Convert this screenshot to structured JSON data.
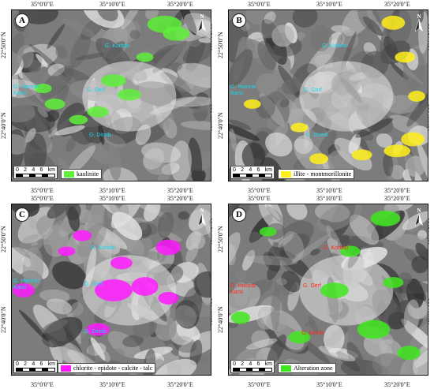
{
  "coords": {
    "top": [
      "35°0'0\"E",
      "35°10'0\"E",
      "35°20'0\"E"
    ],
    "bottom": [
      "35°0'0\"E",
      "35°10'0\"E",
      "35°20'0\"E"
    ],
    "left": [
      "22°50'0\"N",
      "22°40'0\"N"
    ],
    "right": [
      "22°50'0\"N",
      "22°40'0\"N"
    ]
  },
  "scale": {
    "ticks": [
      "0",
      "2",
      "4",
      "6"
    ],
    "unit": "km"
  },
  "north_label": "N",
  "places": {
    "korbiai": "G. Korbiai",
    "gerf": "G. Gerf",
    "hamrat": "G. Hamrat\nKarsi",
    "direib": "G. Direib"
  },
  "panels": [
    {
      "letter": "A",
      "legend": "kaolinite",
      "color": "#5ef03a",
      "label_color": "#19d6f0"
    },
    {
      "letter": "B",
      "legend": "illite - montmorillonite",
      "color": "#ffee1a",
      "label_color": "#19d6f0"
    },
    {
      "letter": "C",
      "legend": "chlorite - epidote - calcite - talc",
      "color": "#ff1aff",
      "label_color": "#19d6f0"
    },
    {
      "letter": "D",
      "legend": "Alteration zone",
      "color": "#3fe61f",
      "label_color": "#ff2a1a"
    }
  ]
}
